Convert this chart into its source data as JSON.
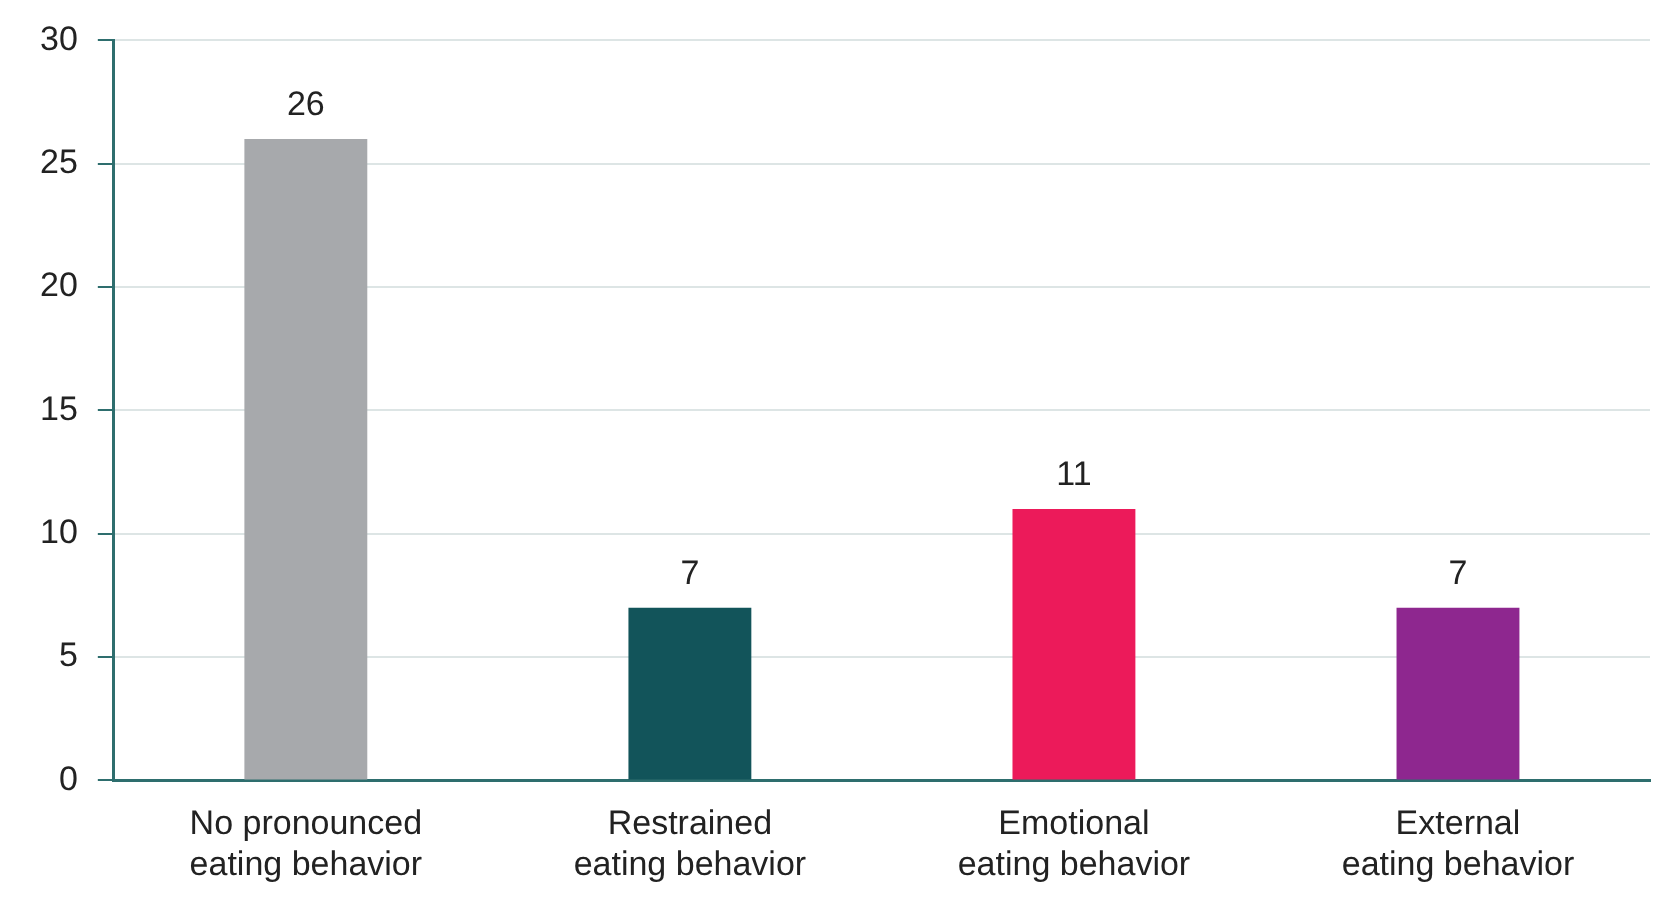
{
  "chart_data": {
    "type": "bar",
    "categories": [
      "No pronounced eating behavior",
      "Restrained eating behavior",
      "Emotional eating behavior",
      "External eating behavior"
    ],
    "values": [
      26,
      7,
      11,
      7
    ],
    "colors": [
      "#a7a9ac",
      "#12545a",
      "#ec1a5a",
      "#8e278f"
    ],
    "ylim": [
      0,
      30
    ],
    "yticks": [
      0,
      5,
      10,
      15,
      20,
      25,
      30
    ],
    "grid": "y",
    "legend": false,
    "data_labels": true
  }
}
